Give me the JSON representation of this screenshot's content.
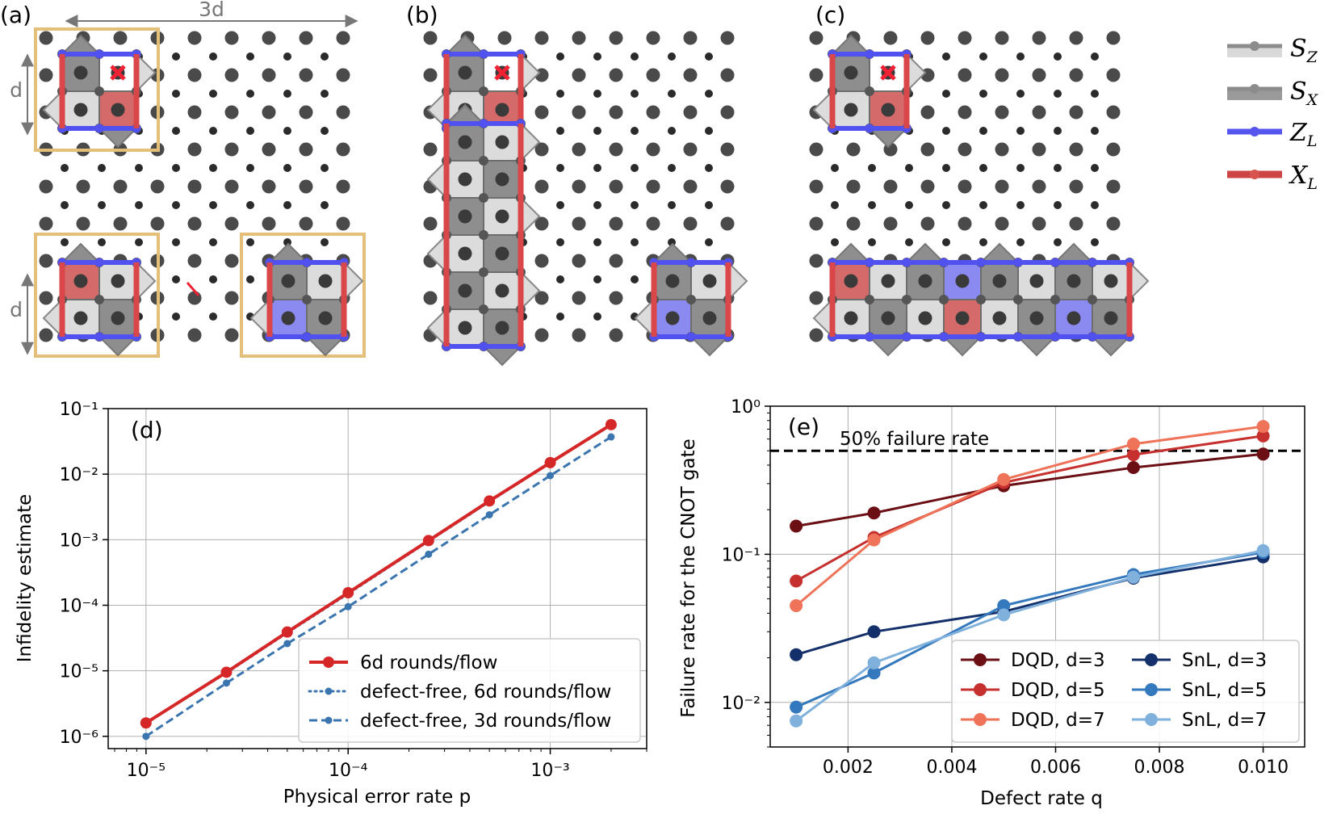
{
  "panels": {
    "a": "(a)",
    "b": "(b)",
    "c": "(c)",
    "d": "(d)",
    "e": "(e)"
  },
  "lattice_annotations": {
    "width_label": "3d",
    "height_label_top": "d",
    "height_label_bottom": "d"
  },
  "key": {
    "items": [
      {
        "name": "S",
        "sub": "Z",
        "color": "#8c8c8c",
        "band": "#d9d9d9"
      },
      {
        "name": "S",
        "sub": "X",
        "color": "#8c8c8c",
        "band": "#9a9a9a"
      },
      {
        "name": "Z",
        "sub": "L",
        "color": "#5555ee",
        "band": "#5555ee"
      },
      {
        "name": "X",
        "sub": "L",
        "color": "#d9534f",
        "band": "#cc4444"
      }
    ]
  },
  "colors": {
    "zl": "#5151f0",
    "xl": "#d9474a",
    "sz": "#dcdcdc",
    "sx": "#8e8e8e",
    "dot": "#4a4a4a",
    "box": "#e4bf7a",
    "red_series": "#d62728",
    "blue_series": "#3b75af"
  },
  "chart_data": [
    {
      "type": "line",
      "panel": "(d)",
      "xlabel": "Physical error rate p",
      "ylabel": "Infidelity estimate",
      "xscale": "log",
      "yscale": "log",
      "xlim": [
        6.5e-06,
        0.003
      ],
      "ylim": [
        6.5e-07,
        0.1
      ],
      "x_ticks": [
        {
          "value": 1e-05,
          "label": "10⁻⁵"
        },
        {
          "value": 0.0001,
          "label": "10⁻⁴"
        },
        {
          "value": 0.001,
          "label": "10⁻³"
        }
      ],
      "y_ticks": [
        {
          "value": 1e-06,
          "label": "10⁻⁶"
        },
        {
          "value": 1e-05,
          "label": "10⁻⁵"
        },
        {
          "value": 0.0001,
          "label": "10⁻⁴"
        },
        {
          "value": 0.001,
          "label": "10⁻³"
        },
        {
          "value": 0.01,
          "label": "10⁻²"
        },
        {
          "value": 0.1,
          "label": "10⁻¹"
        }
      ],
      "x": [
        1e-05,
        2.5e-05,
        5e-05,
        0.0001,
        0.00025,
        0.0005,
        0.001,
        0.002
      ],
      "series": [
        {
          "name": "6d rounds/flow",
          "style": "solid",
          "color": "#d62728",
          "values": [
            1.6e-06,
            9.5e-06,
            3.9e-05,
            0.000155,
            0.00097,
            0.0039,
            0.015,
            0.057
          ]
        },
        {
          "name": "defect-free, 6d rounds/flow",
          "style": "dotted",
          "color": "#3b75af",
          "values": [
            1.6e-06,
            9.3e-06,
            3.8e-05,
            0.00015,
            0.00095,
            0.0038,
            0.015,
            0.056
          ]
        },
        {
          "name": "defect-free, 3d rounds/flow",
          "style": "dashed",
          "color": "#3b75af",
          "values": [
            1e-06,
            6.5e-06,
            2.6e-05,
            9.5e-05,
            0.0006,
            0.0024,
            0.0095,
            0.037
          ]
        }
      ],
      "legend_position": "lower-right"
    },
    {
      "type": "line",
      "panel": "(e)",
      "xlabel": "Defect rate q",
      "ylabel": "Failure rate for the CNOT gate",
      "xscale": "linear",
      "yscale": "log",
      "xlim": [
        0.0005,
        0.0108
      ],
      "ylim": [
        0.005,
        1.0
      ],
      "x_ticks": [
        {
          "value": 0.002,
          "label": "0.002"
        },
        {
          "value": 0.004,
          "label": "0.004"
        },
        {
          "value": 0.006,
          "label": "0.006"
        },
        {
          "value": 0.008,
          "label": "0.008"
        },
        {
          "value": 0.01,
          "label": "0.010"
        }
      ],
      "y_ticks": [
        {
          "value": 0.01,
          "label": "10⁻²"
        },
        {
          "value": 0.1,
          "label": "10⁻¹"
        },
        {
          "value": 1.0,
          "label": "10⁰"
        }
      ],
      "x": [
        0.001,
        0.0025,
        0.005,
        0.0075,
        0.01
      ],
      "threshold": {
        "value": 0.5,
        "label": "50% failure rate"
      },
      "series": [
        {
          "name": "DQD, d=3",
          "color": "#6b0f14",
          "values": [
            0.155,
            0.19,
            0.29,
            0.385,
            0.475
          ]
        },
        {
          "name": "DQD, d=5",
          "color": "#c6312f",
          "values": [
            0.066,
            0.13,
            0.305,
            0.47,
            0.63
          ]
        },
        {
          "name": "DQD, d=7",
          "color": "#ef7358",
          "values": [
            0.045,
            0.125,
            0.32,
            0.555,
            0.73
          ]
        },
        {
          "name": "SnL, d=3",
          "color": "#14306b",
          "values": [
            0.021,
            0.03,
            0.041,
            0.069,
            0.096
          ]
        },
        {
          "name": "SnL, d=5",
          "color": "#3478bd",
          "values": [
            0.0093,
            0.0158,
            0.045,
            0.073,
            0.103
          ]
        },
        {
          "name": "SnL, d=7",
          "color": "#7fb1dc",
          "values": [
            0.0075,
            0.0185,
            0.039,
            0.07,
            0.106
          ]
        }
      ],
      "legend_position": "lower-right"
    }
  ]
}
